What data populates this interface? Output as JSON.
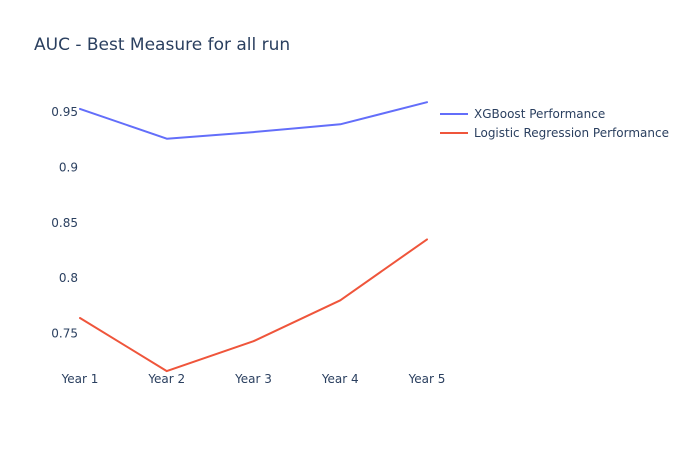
{
  "chart_data": {
    "type": "line",
    "title": "AUC - Best Measure for all run",
    "xlabel": "",
    "ylabel": "",
    "categories": [
      "Year 1",
      "Year 2",
      "Year 3",
      "Year 4",
      "Year 5"
    ],
    "ylim": [
      0.717,
      0.961
    ],
    "yticks": [
      0.75,
      0.8,
      0.85,
      0.9,
      0.95
    ],
    "ytick_labels": [
      "0.75",
      "0.8",
      "0.85",
      "0.9",
      "0.95"
    ],
    "grid": false,
    "legend_position": "top-right",
    "series": [
      {
        "name": "XGBoost Performance",
        "color": "#636efa",
        "values": [
          0.953,
          0.926,
          0.932,
          0.939,
          0.959
        ]
      },
      {
        "name": "Logistic Regression Performance",
        "color": "#ef553b",
        "values": [
          0.764,
          0.716,
          0.743,
          0.78,
          0.835
        ]
      }
    ]
  }
}
